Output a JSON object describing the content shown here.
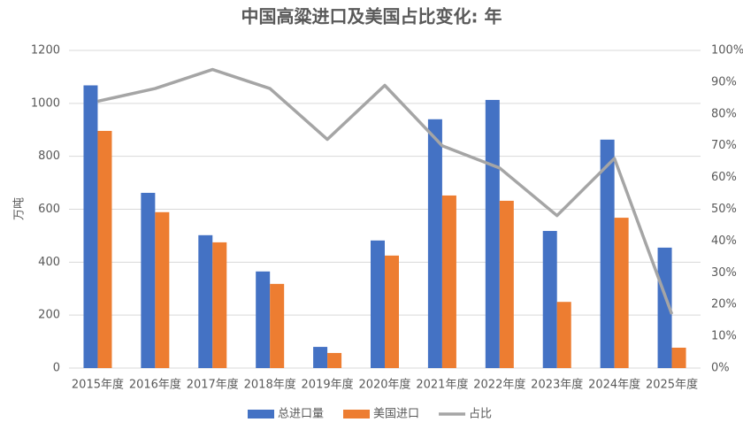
{
  "chart_data": {
    "type": "bar",
    "title": "中国高粱进口及美国占比变化: 年",
    "y_label": "万吨",
    "categories": [
      "2015年度",
      "2016年度",
      "2017年度",
      "2018年度",
      "2019年度",
      "2020年度",
      "2021年度",
      "2022年度",
      "2023年度",
      "2024年度",
      "2025年度"
    ],
    "series": [
      {
        "name": "总进口量",
        "color": "#4472c4",
        "type": "bar",
        "values": [
          1068,
          662,
          502,
          365,
          80,
          482,
          940,
          1013,
          518,
          863,
          455
        ]
      },
      {
        "name": "美国进口",
        "color": "#ed7d31",
        "type": "bar",
        "values": [
          896,
          589,
          475,
          318,
          57,
          425,
          652,
          632,
          250,
          568,
          77
        ]
      },
      {
        "name": "占比",
        "color": "#a5a5a5",
        "type": "line",
        "axis": "y2",
        "values": [
          84,
          88,
          94,
          88,
          72,
          89,
          70,
          63,
          48,
          66,
          17
        ]
      }
    ],
    "ylim": [
      0,
      1200
    ],
    "yticks": [
      0,
      200,
      400,
      600,
      800,
      1000,
      1200
    ],
    "y2lim": [
      0,
      100
    ],
    "y2ticks": [
      {
        "value": 0,
        "label": "0%"
      },
      {
        "value": 10,
        "label": "10%"
      },
      {
        "value": 20,
        "label": "20%"
      },
      {
        "value": 30,
        "label": "30%"
      },
      {
        "value": 40,
        "label": "40%"
      },
      {
        "value": 50,
        "label": "50%"
      },
      {
        "value": 60,
        "label": "60%"
      },
      {
        "value": 70,
        "label": "70%"
      },
      {
        "value": 80,
        "label": "80%"
      },
      {
        "value": 90,
        "label": "90%"
      },
      {
        "value": 100,
        "label": "100%"
      }
    ],
    "grid": true,
    "legend": "bottom"
  }
}
